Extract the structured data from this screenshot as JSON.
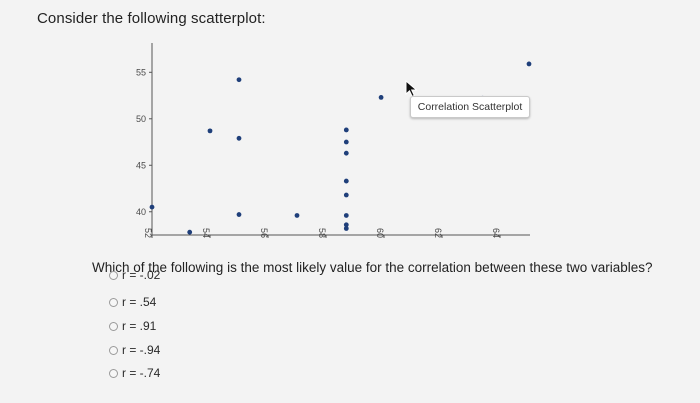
{
  "prompt": "Consider the following scatterplot:",
  "question": "Which of the following is the most likely value for the correlation between these two variables?",
  "tooltip": "Correlation Scatterplot",
  "options": [
    {
      "label": "r = -.02"
    },
    {
      "label": "r = .54"
    },
    {
      "label": "r = .91"
    },
    {
      "label": "r = -.94"
    },
    {
      "label": "r = -.74"
    }
  ],
  "chart_data": {
    "type": "scatter",
    "title": "",
    "xlabel": "",
    "ylabel": "",
    "xlim": [
      52,
      65
    ],
    "ylim": [
      37.5,
      56
    ],
    "xticks": [
      "52",
      "54",
      "56",
      "58",
      "60",
      "62",
      "64"
    ],
    "yticks": [
      "40",
      "45",
      "50",
      "55"
    ],
    "points": [
      {
        "x": 52.0,
        "y": 40.5
      },
      {
        "x": 53.3,
        "y": 37.8
      },
      {
        "x": 54.0,
        "y": 48.7
      },
      {
        "x": 55.0,
        "y": 54.2
      },
      {
        "x": 55.0,
        "y": 47.9
      },
      {
        "x": 55.0,
        "y": 39.7
      },
      {
        "x": 57.0,
        "y": 39.6
      },
      {
        "x": 58.7,
        "y": 48.8
      },
      {
        "x": 58.7,
        "y": 47.5
      },
      {
        "x": 58.7,
        "y": 46.3
      },
      {
        "x": 58.7,
        "y": 43.3
      },
      {
        "x": 58.7,
        "y": 41.8
      },
      {
        "x": 58.7,
        "y": 39.6
      },
      {
        "x": 58.7,
        "y": 38.6
      },
      {
        "x": 58.7,
        "y": 38.2
      },
      {
        "x": 59.9,
        "y": 52.3
      },
      {
        "x": 63.4,
        "y": 52.2
      },
      {
        "x": 65.0,
        "y": 55.9
      }
    ],
    "grid": false,
    "legend": "none",
    "colors": {
      "point": "#1f3f7a",
      "axis": "#555555"
    }
  }
}
